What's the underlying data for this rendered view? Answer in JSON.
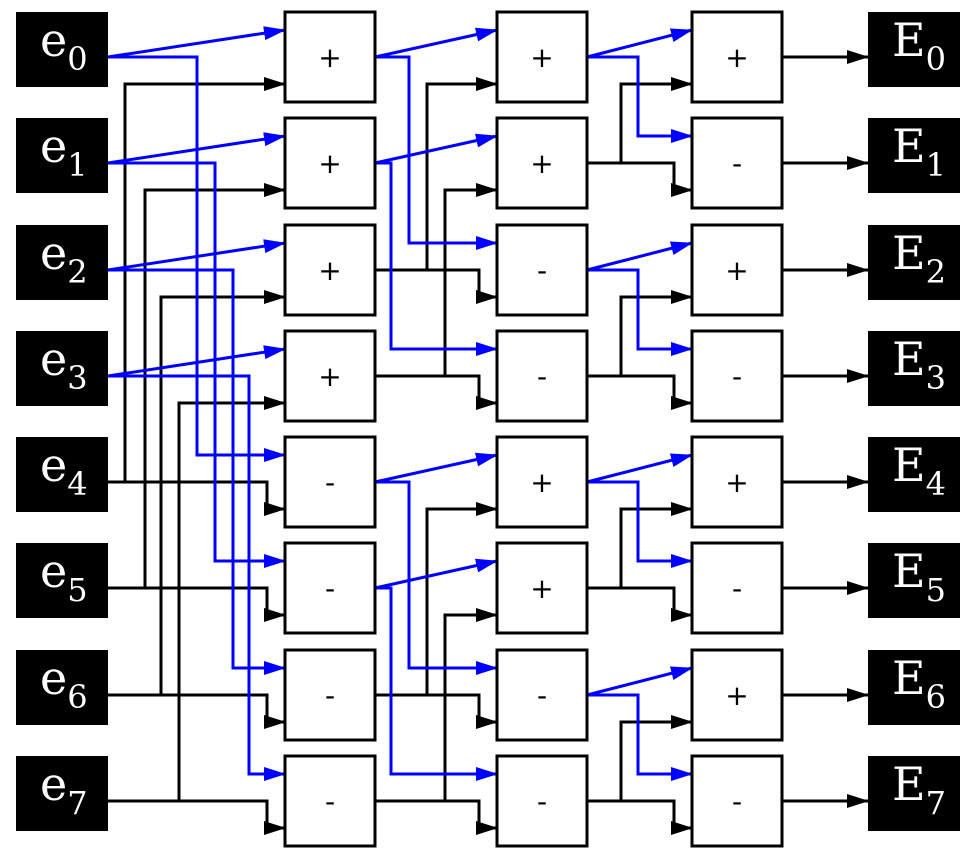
{
  "inputs": [
    {
      "base": "e",
      "sub": "0"
    },
    {
      "base": "e",
      "sub": "1"
    },
    {
      "base": "e",
      "sub": "2"
    },
    {
      "base": "e",
      "sub": "3"
    },
    {
      "base": "e",
      "sub": "4"
    },
    {
      "base": "e",
      "sub": "5"
    },
    {
      "base": "e",
      "sub": "6"
    },
    {
      "base": "e",
      "sub": "7"
    }
  ],
  "outputs": [
    {
      "base": "E",
      "sub": "0"
    },
    {
      "base": "E",
      "sub": "1"
    },
    {
      "base": "E",
      "sub": "2"
    },
    {
      "base": "E",
      "sub": "3"
    },
    {
      "base": "E",
      "sub": "4"
    },
    {
      "base": "E",
      "sub": "5"
    },
    {
      "base": "E",
      "sub": "6"
    },
    {
      "base": "E",
      "sub": "7"
    }
  ],
  "stages": [
    {
      "ops": [
        "+",
        "+",
        "+",
        "+",
        "-",
        "-",
        "-",
        "-"
      ]
    },
    {
      "ops": [
        "+",
        "+",
        "-",
        "-",
        "+",
        "+",
        "-",
        "-"
      ]
    },
    {
      "ops": [
        "+",
        "-",
        "+",
        "-",
        "+",
        "-",
        "+",
        "-"
      ]
    }
  ],
  "colors": {
    "blue_wire": "#0000ff",
    "black_wire": "#000000",
    "io_box": "#000000"
  }
}
